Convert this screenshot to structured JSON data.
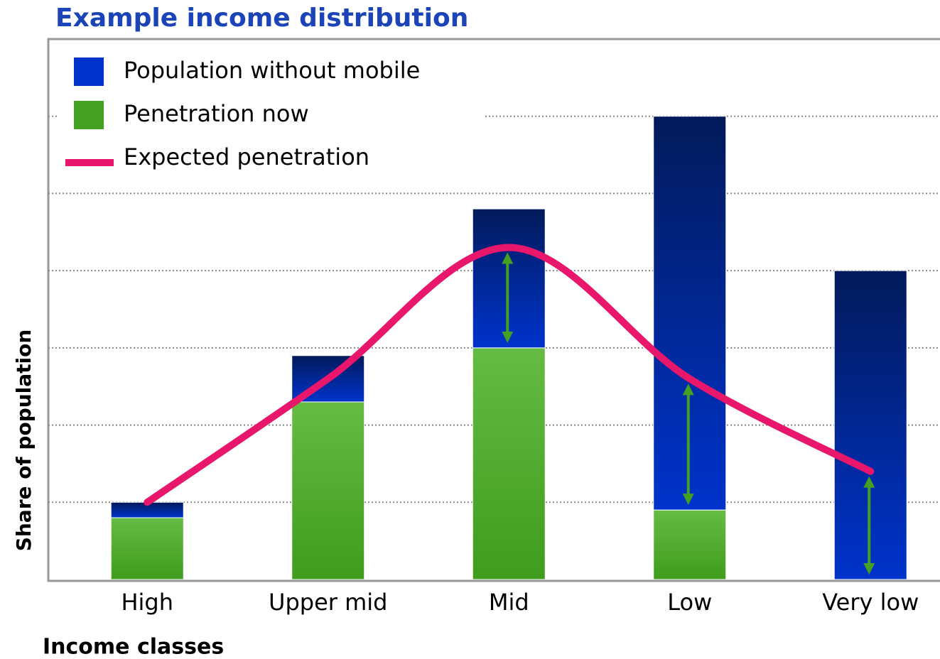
{
  "chart_data": {
    "type": "bar",
    "title": "Example income distribution",
    "x_label": "Income classes",
    "y_label": "Share of population",
    "categories": [
      "High",
      "Upper mid",
      "Mid",
      "Low",
      "Very low"
    ],
    "series": [
      {
        "name": "Penetration now",
        "color": "#44a020",
        "values": [
          0.8,
          2.3,
          3.0,
          0.9,
          0
        ]
      },
      {
        "name": "Population without mobile",
        "color": "#0033cc",
        "values": [
          0.2,
          0.6,
          1.8,
          5.1,
          4.0
        ]
      },
      {
        "name": "Expected penetration",
        "type": "line",
        "color": "#e8176b",
        "values": [
          1.0,
          2.6,
          4.3,
          2.6,
          1.4
        ]
      }
    ],
    "ylim": [
      0,
      7
    ],
    "yticks": [
      1,
      2,
      3,
      4,
      5,
      6
    ],
    "grid": true,
    "legend": "upper left"
  }
}
